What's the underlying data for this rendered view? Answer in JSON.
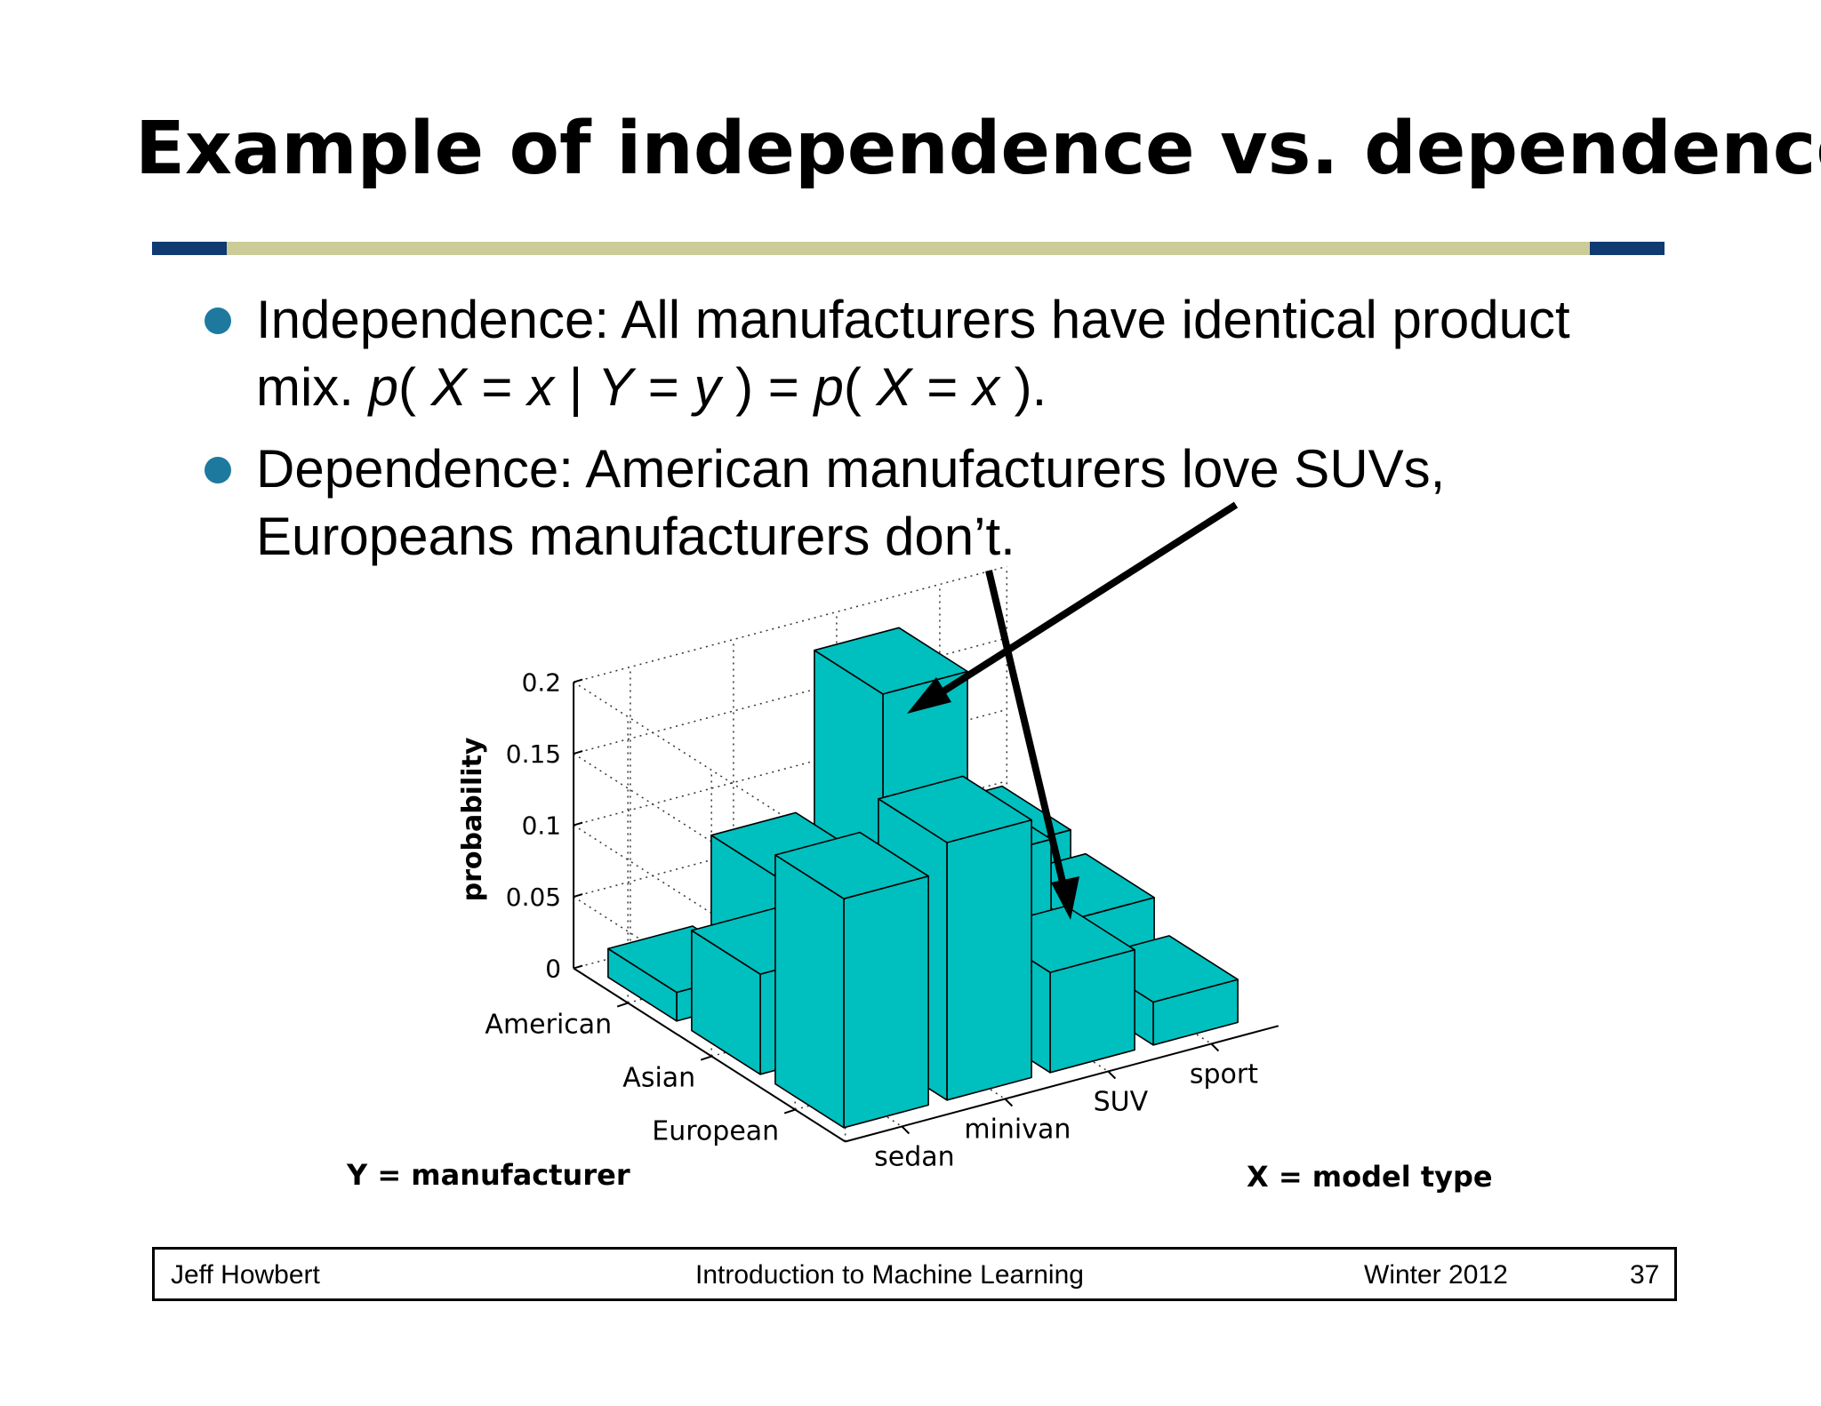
{
  "slide": {
    "title": "Example of independence vs. dependence",
    "bullets": [
      {
        "lines": [
          [
            {
              "t": "Independence: All manufacturers have identical product"
            }
          ],
          [
            {
              "t": "mix. "
            },
            {
              "t": "p",
              "i": true
            },
            {
              "t": "( "
            },
            {
              "t": "X",
              "i": true
            },
            {
              "t": " = "
            },
            {
              "t": "x",
              "i": true
            },
            {
              "t": " | "
            },
            {
              "t": "Y",
              "i": true
            },
            {
              "t": " = "
            },
            {
              "t": "y",
              "i": true
            },
            {
              "t": " ) = "
            },
            {
              "t": "p",
              "i": true
            },
            {
              "t": "( "
            },
            {
              "t": "X",
              "i": true
            },
            {
              "t": " = "
            },
            {
              "t": "x",
              "i": true
            },
            {
              "t": " )."
            }
          ]
        ]
      },
      {
        "lines": [
          [
            {
              "t": "Dependence: American manufacturers love SUVs,"
            }
          ],
          [
            {
              "t": "Europeans manufacturers don’t."
            }
          ]
        ]
      }
    ]
  },
  "chart_data": {
    "type": "bar3d",
    "zlabel": "probability",
    "y_axis_title": "Y = manufacturer",
    "x_axis_title": "X = model type",
    "y_categories": [
      "American",
      "Asian",
      "European"
    ],
    "x_categories": [
      "sedan",
      "minivan",
      "SUV",
      "sport"
    ],
    "zlim": [
      0,
      0.2
    ],
    "zticks": [
      "0",
      "0.05",
      "0.1",
      "0.15",
      "0.2"
    ],
    "values": [
      [
        0.02,
        0.08,
        0.19,
        0.06
      ],
      [
        0.07,
        0.09,
        0.11,
        0.05
      ],
      [
        0.16,
        0.18,
        0.07,
        0.03
      ]
    ],
    "bar_color": "#00bfbf",
    "grid": true
  },
  "footer": {
    "author": "Jeff Howbert",
    "course": "Introduction to Machine Learning",
    "term": "Winter 2012",
    "page": "37"
  },
  "colors": {
    "title_rule": "#cccc99",
    "title_rule_caps": "#0f3a72",
    "bullet": "#1d7a9e"
  }
}
